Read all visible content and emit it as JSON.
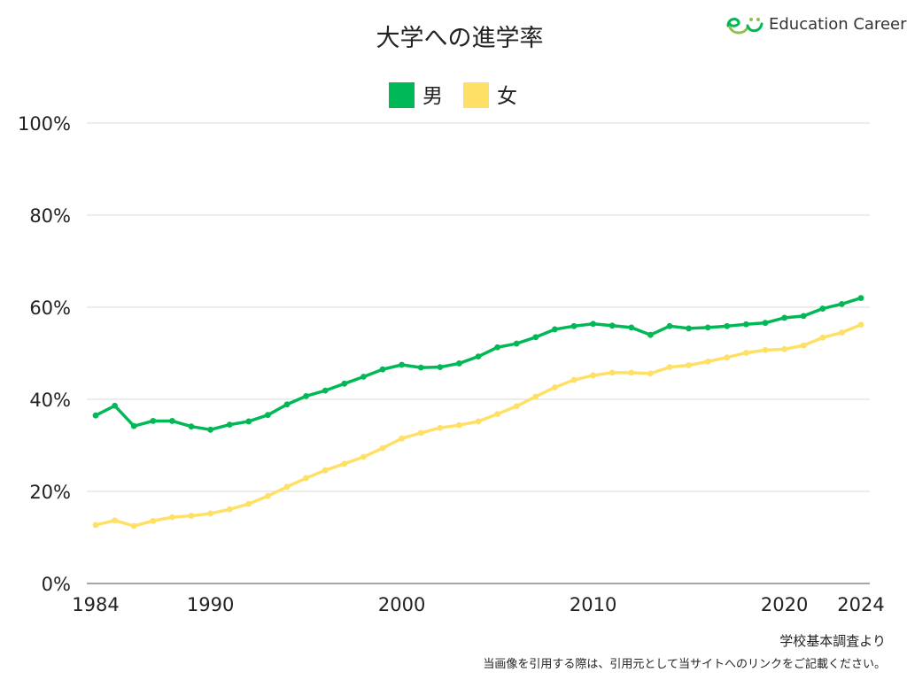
{
  "logo": {
    "text": "Education Career",
    "icon": "ec-logo-icon"
  },
  "source": "学校基本調査より",
  "note": "当画像を引用する際は、引用元として当サイトへのリンクをご記載ください。",
  "colors": {
    "male": "#00b956",
    "female": "#ffe066",
    "grid": "#d9d9d9",
    "axis": "#888888"
  },
  "chart_data": {
    "type": "line",
    "title": "大学への進学率",
    "x": [
      1984,
      1985,
      1986,
      1987,
      1988,
      1989,
      1990,
      1991,
      1992,
      1993,
      1994,
      1995,
      1996,
      1997,
      1998,
      1999,
      2000,
      2001,
      2002,
      2003,
      2004,
      2005,
      2006,
      2007,
      2008,
      2009,
      2010,
      2011,
      2012,
      2013,
      2014,
      2015,
      2016,
      2017,
      2018,
      2019,
      2020,
      2021,
      2022,
      2023,
      2024
    ],
    "xticks": [
      1984,
      1990,
      2000,
      2010,
      2020,
      2024
    ],
    "xlim": [
      1984,
      2024
    ],
    "ylim": [
      0,
      100
    ],
    "yticks": [
      0,
      20,
      40,
      60,
      80,
      100
    ],
    "ytick_labels": [
      "0%",
      "20%",
      "40%",
      "60%",
      "80%",
      "100%"
    ],
    "grid": true,
    "legend_position": "top-center",
    "series": [
      {
        "name": "男",
        "color": "#00b956",
        "values": [
          36.5,
          38.6,
          34.2,
          35.3,
          35.3,
          34.1,
          33.4,
          34.5,
          35.2,
          36.6,
          38.9,
          40.7,
          41.9,
          43.4,
          44.9,
          46.5,
          47.5,
          46.9,
          47.0,
          47.8,
          49.3,
          51.3,
          52.1,
          53.5,
          55.2,
          55.9,
          56.4,
          56.0,
          55.6,
          54.0,
          55.9,
          55.4,
          55.6,
          55.9,
          56.3,
          56.6,
          57.7,
          58.1,
          59.7,
          60.7,
          62.0
        ]
      },
      {
        "name": "女",
        "color": "#ffe066",
        "values": [
          12.7,
          13.7,
          12.5,
          13.6,
          14.4,
          14.7,
          15.2,
          16.1,
          17.3,
          19.0,
          21.0,
          22.9,
          24.6,
          26.0,
          27.5,
          29.4,
          31.5,
          32.7,
          33.8,
          34.4,
          35.2,
          36.8,
          38.5,
          40.6,
          42.6,
          44.2,
          45.2,
          45.8,
          45.8,
          45.6,
          47.0,
          47.4,
          48.2,
          49.1,
          50.1,
          50.7,
          50.9,
          51.7,
          53.4,
          54.5,
          56.2
        ]
      }
    ]
  }
}
